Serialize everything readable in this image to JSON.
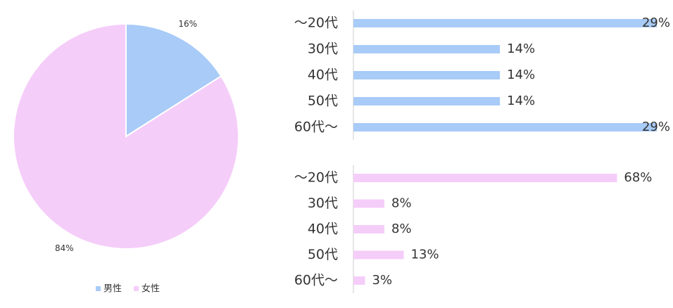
{
  "chart_data": [
    {
      "type": "pie",
      "categories": [
        "男性",
        "女性"
      ],
      "values": [
        16,
        84
      ],
      "value_labels": [
        "16%",
        "84%"
      ],
      "colors": [
        "#a8cbf7",
        "#f5cdf9"
      ],
      "legend": "bottom"
    },
    {
      "type": "barh",
      "categories": [
        "～20代",
        "30代",
        "40代",
        "50代",
        "60代～"
      ],
      "values": [
        29,
        14,
        14,
        14,
        29
      ],
      "value_labels": [
        "29%",
        "14%",
        "14%",
        "14%",
        "29%"
      ],
      "color": "#a8cbf7",
      "xlim": [
        0,
        30
      ]
    },
    {
      "type": "barh",
      "categories": [
        "～20代",
        "30代",
        "40代",
        "50代",
        "60代～"
      ],
      "values": [
        68,
        8,
        8,
        13,
        3
      ],
      "value_labels": [
        "68%",
        "8%",
        "8%",
        "13%",
        "3%"
      ],
      "color": "#f5cdf9",
      "xlim": [
        0,
        81
      ]
    }
  ]
}
